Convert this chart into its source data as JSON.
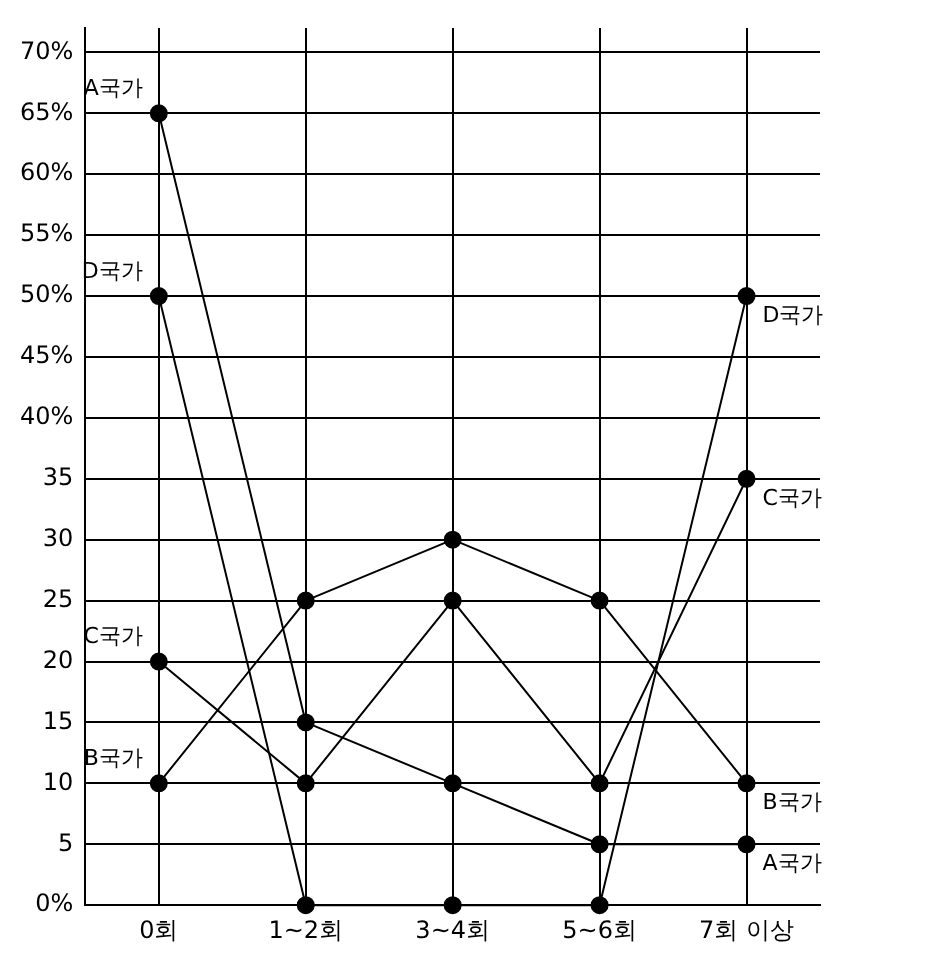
{
  "chart_data": {
    "type": "line",
    "categories": [
      "0회",
      "1~2회",
      "3~4회",
      "5~6회",
      "7회 이상"
    ],
    "series": [
      {
        "name": "A국가",
        "color": "#000000",
        "values": [
          65,
          15,
          10,
          5,
          5
        ]
      },
      {
        "name": "B국가",
        "color": "#000000",
        "values": [
          10,
          25,
          30,
          25,
          10
        ]
      },
      {
        "name": "C국가",
        "color": "#000000",
        "values": [
          20,
          10,
          25,
          10,
          35
        ]
      },
      {
        "name": "D국가",
        "color": "#000000",
        "values": [
          50,
          0,
          0,
          0,
          50
        ]
      }
    ],
    "ylim": [
      0,
      72
    ],
    "yticks": [
      {
        "value": 0,
        "label": "0%"
      },
      5,
      10,
      15,
      20,
      25,
      30,
      35,
      {
        "value": 40,
        "label": "40%"
      },
      {
        "value": 45,
        "label": "45%"
      },
      {
        "value": 50,
        "label": "50%"
      },
      {
        "value": 55,
        "label": "55%"
      },
      {
        "value": 60,
        "label": "60%"
      },
      {
        "value": 65,
        "label": "65%"
      },
      {
        "value": 70,
        "label": "70%"
      }
    ],
    "grid": true,
    "legend": false,
    "marker": "circle",
    "line_style": "solid"
  }
}
